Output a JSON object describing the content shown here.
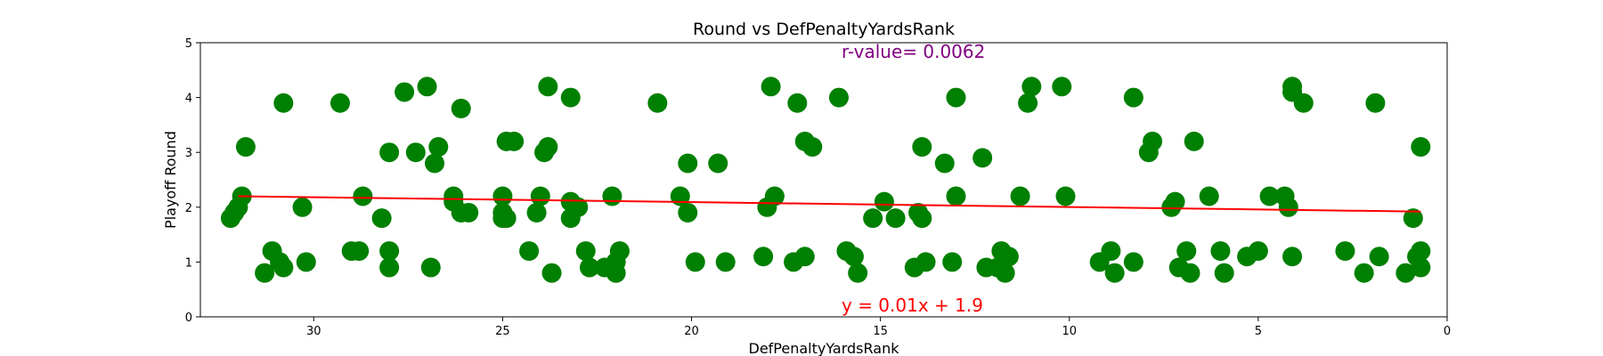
{
  "chart_data": {
    "type": "scatter",
    "title": "Round vs DefPenaltyYardsRank",
    "xlabel": "DefPenaltyYardsRank",
    "ylabel": "Playoff Round",
    "xlim": [
      33,
      0
    ],
    "ylim": [
      0,
      5
    ],
    "x_ticks": [
      30,
      25,
      20,
      15,
      10,
      5,
      0
    ],
    "y_ticks": [
      0,
      1,
      2,
      3,
      4,
      5
    ],
    "x_tick_labels": [
      "30",
      "25",
      "20",
      "15",
      "10",
      "5",
      "0"
    ],
    "y_tick_labels": [
      "0",
      "1",
      "2",
      "3",
      "4",
      "5"
    ],
    "grid": false,
    "point_color": "#008000",
    "line_color": "#ff0000",
    "r_text_color": "#800080",
    "annotations": {
      "r_value": "r-value= 0.0062",
      "equation": "y = 0.01x + 1.9"
    },
    "regression": {
      "x": [
        32,
        0.7
      ],
      "y": [
        2.2,
        1.92
      ]
    },
    "points": [
      {
        "x": 32.2,
        "y": 1.8
      },
      {
        "x": 32.1,
        "y": 1.9
      },
      {
        "x": 32.0,
        "y": 2.0
      },
      {
        "x": 31.9,
        "y": 2.2
      },
      {
        "x": 31.8,
        "y": 3.1
      },
      {
        "x": 31.3,
        "y": 0.8
      },
      {
        "x": 31.1,
        "y": 1.2
      },
      {
        "x": 30.9,
        "y": 1.0
      },
      {
        "x": 30.8,
        "y": 0.9
      },
      {
        "x": 30.8,
        "y": 3.9
      },
      {
        "x": 30.3,
        "y": 2.0
      },
      {
        "x": 30.2,
        "y": 1.0
      },
      {
        "x": 29.3,
        "y": 3.9
      },
      {
        "x": 29.0,
        "y": 1.2
      },
      {
        "x": 28.8,
        "y": 1.2
      },
      {
        "x": 28.7,
        "y": 2.2
      },
      {
        "x": 28.2,
        "y": 1.8
      },
      {
        "x": 28.0,
        "y": 3.0
      },
      {
        "x": 28.0,
        "y": 1.2
      },
      {
        "x": 28.0,
        "y": 0.9
      },
      {
        "x": 27.6,
        "y": 4.1
      },
      {
        "x": 27.3,
        "y": 3.0
      },
      {
        "x": 27.0,
        "y": 4.2
      },
      {
        "x": 26.9,
        "y": 0.9
      },
      {
        "x": 26.8,
        "y": 2.8
      },
      {
        "x": 26.7,
        "y": 3.1
      },
      {
        "x": 26.3,
        "y": 2.2
      },
      {
        "x": 26.3,
        "y": 2.1
      },
      {
        "x": 26.1,
        "y": 3.8
      },
      {
        "x": 26.1,
        "y": 1.9
      },
      {
        "x": 25.9,
        "y": 1.9
      },
      {
        "x": 25.0,
        "y": 2.2
      },
      {
        "x": 25.0,
        "y": 1.9
      },
      {
        "x": 25.0,
        "y": 1.8
      },
      {
        "x": 24.9,
        "y": 3.2
      },
      {
        "x": 24.9,
        "y": 1.8
      },
      {
        "x": 24.7,
        "y": 3.2
      },
      {
        "x": 24.3,
        "y": 1.2
      },
      {
        "x": 24.1,
        "y": 1.9
      },
      {
        "x": 24.0,
        "y": 2.2
      },
      {
        "x": 23.9,
        "y": 3.0
      },
      {
        "x": 23.8,
        "y": 3.1
      },
      {
        "x": 23.8,
        "y": 4.2
      },
      {
        "x": 23.7,
        "y": 0.8
      },
      {
        "x": 23.2,
        "y": 4.0
      },
      {
        "x": 23.2,
        "y": 2.1
      },
      {
        "x": 23.2,
        "y": 1.8
      },
      {
        "x": 23.0,
        "y": 2.0
      },
      {
        "x": 22.8,
        "y": 1.2
      },
      {
        "x": 22.7,
        "y": 0.9
      },
      {
        "x": 22.3,
        "y": 0.9
      },
      {
        "x": 22.1,
        "y": 2.2
      },
      {
        "x": 22.0,
        "y": 1.0
      },
      {
        "x": 22.0,
        "y": 0.8
      },
      {
        "x": 21.9,
        "y": 1.2
      },
      {
        "x": 20.9,
        "y": 3.9
      },
      {
        "x": 20.3,
        "y": 2.2
      },
      {
        "x": 20.1,
        "y": 2.8
      },
      {
        "x": 20.1,
        "y": 1.9
      },
      {
        "x": 19.9,
        "y": 1.0
      },
      {
        "x": 19.3,
        "y": 2.8
      },
      {
        "x": 19.1,
        "y": 1.0
      },
      {
        "x": 18.1,
        "y": 1.1
      },
      {
        "x": 18.0,
        "y": 2.0
      },
      {
        "x": 17.9,
        "y": 4.2
      },
      {
        "x": 17.8,
        "y": 2.2
      },
      {
        "x": 17.3,
        "y": 1.0
      },
      {
        "x": 17.2,
        "y": 3.9
      },
      {
        "x": 17.0,
        "y": 1.1
      },
      {
        "x": 17.0,
        "y": 3.2
      },
      {
        "x": 16.8,
        "y": 3.1
      },
      {
        "x": 16.1,
        "y": 4.0
      },
      {
        "x": 15.9,
        "y": 1.2
      },
      {
        "x": 15.7,
        "y": 1.1
      },
      {
        "x": 15.6,
        "y": 0.8
      },
      {
        "x": 15.2,
        "y": 1.8
      },
      {
        "x": 14.9,
        "y": 2.1
      },
      {
        "x": 14.6,
        "y": 1.8
      },
      {
        "x": 14.1,
        "y": 0.9
      },
      {
        "x": 14.0,
        "y": 1.9
      },
      {
        "x": 13.9,
        "y": 3.1
      },
      {
        "x": 13.9,
        "y": 1.8
      },
      {
        "x": 13.8,
        "y": 1.0
      },
      {
        "x": 13.3,
        "y": 2.8
      },
      {
        "x": 13.1,
        "y": 1.0
      },
      {
        "x": 13.0,
        "y": 2.2
      },
      {
        "x": 13.0,
        "y": 4.0
      },
      {
        "x": 12.3,
        "y": 2.9
      },
      {
        "x": 12.2,
        "y": 0.9
      },
      {
        "x": 11.9,
        "y": 0.9
      },
      {
        "x": 11.8,
        "y": 1.2
      },
      {
        "x": 11.7,
        "y": 0.8
      },
      {
        "x": 11.6,
        "y": 1.1
      },
      {
        "x": 11.3,
        "y": 2.2
      },
      {
        "x": 11.1,
        "y": 3.9
      },
      {
        "x": 11.0,
        "y": 4.2
      },
      {
        "x": 10.2,
        "y": 4.2
      },
      {
        "x": 10.1,
        "y": 2.2
      },
      {
        "x": 9.2,
        "y": 1.0
      },
      {
        "x": 8.9,
        "y": 1.2
      },
      {
        "x": 8.8,
        "y": 0.8
      },
      {
        "x": 8.3,
        "y": 1.0
      },
      {
        "x": 8.3,
        "y": 4.0
      },
      {
        "x": 7.9,
        "y": 3.0
      },
      {
        "x": 7.8,
        "y": 3.2
      },
      {
        "x": 7.3,
        "y": 2.0
      },
      {
        "x": 7.2,
        "y": 2.1
      },
      {
        "x": 7.1,
        "y": 0.9
      },
      {
        "x": 6.9,
        "y": 1.2
      },
      {
        "x": 6.8,
        "y": 0.8
      },
      {
        "x": 6.7,
        "y": 3.2
      },
      {
        "x": 6.3,
        "y": 2.2
      },
      {
        "x": 6.0,
        "y": 1.2
      },
      {
        "x": 5.9,
        "y": 0.8
      },
      {
        "x": 5.3,
        "y": 1.1
      },
      {
        "x": 5.0,
        "y": 1.2
      },
      {
        "x": 4.7,
        "y": 2.2
      },
      {
        "x": 4.3,
        "y": 2.2
      },
      {
        "x": 4.2,
        "y": 2.0
      },
      {
        "x": 4.1,
        "y": 4.2
      },
      {
        "x": 4.1,
        "y": 4.1
      },
      {
        "x": 4.1,
        "y": 1.1
      },
      {
        "x": 3.8,
        "y": 3.9
      },
      {
        "x": 2.7,
        "y": 1.2
      },
      {
        "x": 2.2,
        "y": 0.8
      },
      {
        "x": 1.9,
        "y": 3.9
      },
      {
        "x": 1.8,
        "y": 1.1
      },
      {
        "x": 1.1,
        "y": 0.8
      },
      {
        "x": 0.9,
        "y": 1.8
      },
      {
        "x": 0.8,
        "y": 1.1
      },
      {
        "x": 0.7,
        "y": 1.2
      },
      {
        "x": 0.7,
        "y": 0.9
      },
      {
        "x": 0.7,
        "y": 3.1
      }
    ]
  }
}
